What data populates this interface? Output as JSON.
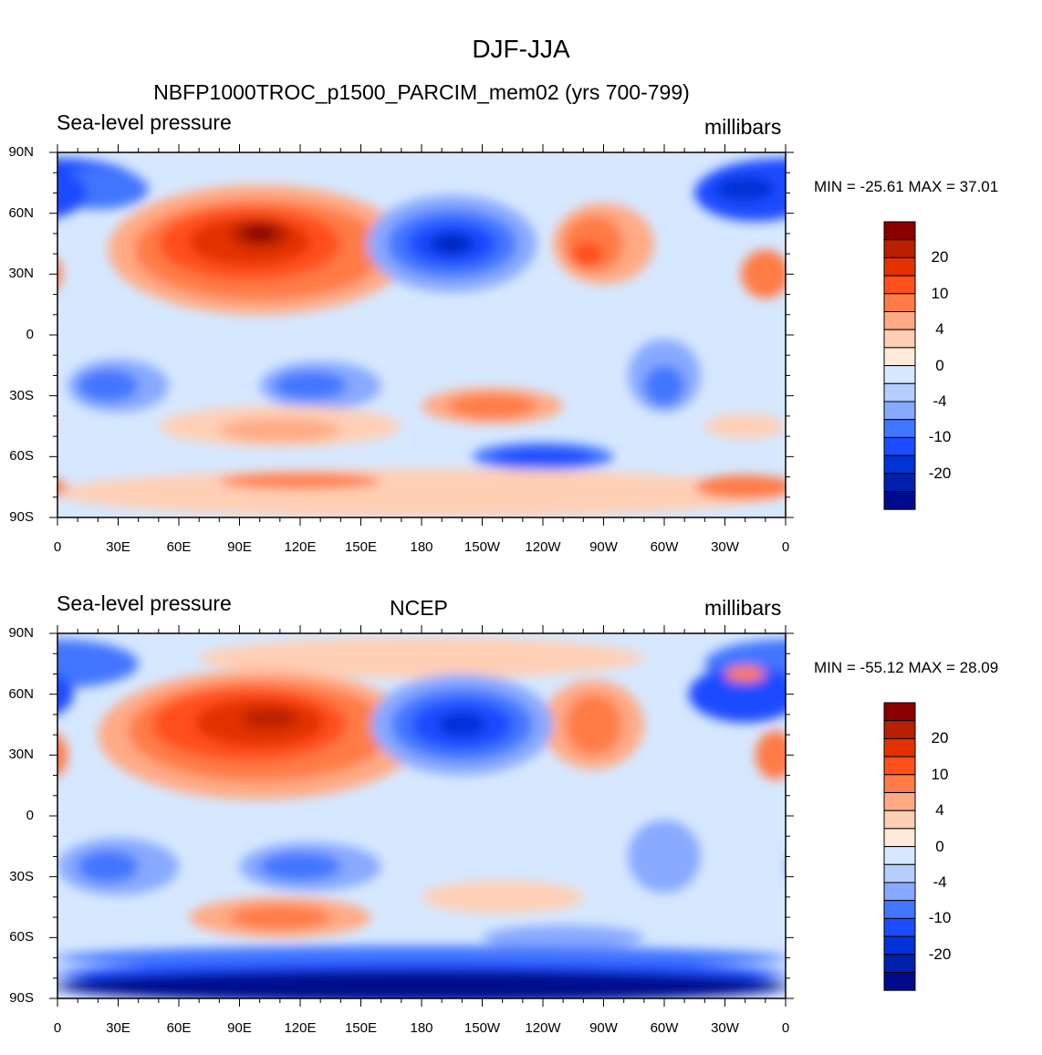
{
  "title": "DJF-JJA",
  "panels": [
    {
      "left_title": "Sea-level pressure",
      "center_title": "NBFP1000TROC_p1500_PARCIM_mem02 (yrs 700-799)",
      "right_title": "millibars",
      "min_max": "MIN = -25.61 MAX =  37.01"
    },
    {
      "left_title": "Sea-level pressure",
      "center_title": "NCEP",
      "right_title": "millibars",
      "min_max": "MIN = -55.12 MAX =  28.09"
    }
  ],
  "lat_labels": [
    "90N",
    "60N",
    "30N",
    "0",
    "30S",
    "60S",
    "90S"
  ],
  "lon_labels": [
    "0",
    "30E",
    "60E",
    "90E",
    "120E",
    "150E",
    "180",
    "150W",
    "120W",
    "90W",
    "60W",
    "30W",
    "0"
  ],
  "colorbar": {
    "labels": [
      "20",
      "10",
      "4",
      "0",
      "-4",
      "-10",
      "-20"
    ],
    "colors": [
      "#8a0000",
      "#b82000",
      "#e33200",
      "#ff4f1a",
      "#ff7b47",
      "#ffaa85",
      "#ffcfb5",
      "#ffeadb",
      "#d6e8ff",
      "#b5ceff",
      "#87a9ff",
      "#4276ff",
      "#1b4cff",
      "#0032d6",
      "#0020ad",
      "#000a8c"
    ]
  }
}
